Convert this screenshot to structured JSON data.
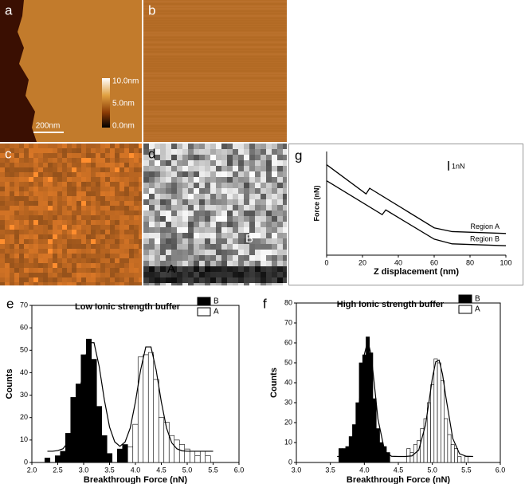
{
  "panel_labels": [
    "a",
    "b",
    "c",
    "d",
    "g",
    "e",
    "f"
  ],
  "image_a": {
    "colorbar_labels": [
      "10.0nm",
      "5.0nm",
      "0.0nm"
    ],
    "scale_bar": "200nm"
  },
  "image_d": {
    "region_labels": [
      "A",
      "B"
    ]
  },
  "chart_data": [
    {
      "type": "line",
      "xlabel": "Z displacement (nm)",
      "ylabel": "Force (nN)",
      "xlim": [
        0,
        100
      ],
      "xticks": [
        0,
        20,
        40,
        60,
        80,
        100
      ],
      "ylim": [
        0,
        11
      ],
      "scale_bar": {
        "value": 1,
        "label": "1nN"
      },
      "series": [
        {
          "name": "Region A",
          "color": "#000000",
          "x": [
            0,
            22,
            24,
            60,
            70,
            100
          ],
          "values": [
            9.6,
            6.5,
            7.1,
            2.9,
            2.5,
            2.3
          ]
        },
        {
          "name": "Region B",
          "color": "#000000",
          "x": [
            0,
            31,
            33,
            60,
            70,
            100
          ],
          "values": [
            7.9,
            4.3,
            4.8,
            1.7,
            1.2,
            1.0
          ]
        }
      ]
    },
    {
      "type": "bar",
      "title": "Low Ionic strength buffer",
      "xlabel": "Breakthrough Force (nN)",
      "ylabel": "Counts",
      "xlim": [
        2.0,
        6.0
      ],
      "xticks": [
        {
          "value": 2,
          "label": "2.0"
        },
        {
          "value": 2.5,
          "label": "2.5"
        },
        {
          "value": 3,
          "label": "3.0"
        },
        {
          "value": 3.5,
          "label": "3.5"
        },
        {
          "value": 4,
          "label": "4.0"
        },
        {
          "value": 4.5,
          "label": "4.5"
        },
        {
          "value": 5,
          "label": "5.0"
        },
        {
          "value": 5.5,
          "label": "5.5"
        },
        {
          "value": 6,
          "label": "6.0"
        }
      ],
      "ylim": [
        0,
        70
      ],
      "yticks": [
        0,
        10,
        20,
        30,
        40,
        50,
        60,
        70
      ],
      "legend": "upper right",
      "series": [
        {
          "name": "B",
          "color": "#000000",
          "x": [
            2.3,
            2.5,
            2.6,
            2.7,
            2.8,
            2.9,
            3.0,
            3.1,
            3.2,
            3.3,
            3.4,
            3.5,
            3.7,
            3.8
          ],
          "values": [
            2,
            3,
            5,
            13,
            29,
            35,
            48,
            55,
            46,
            25,
            12,
            4,
            6,
            8
          ]
        },
        {
          "name": "A",
          "color": "#ffffff",
          "x": [
            3.9,
            4.0,
            4.1,
            4.2,
            4.3,
            4.4,
            4.5,
            4.6,
            4.7,
            4.8,
            4.9,
            5.0,
            5.1,
            5.2,
            5.3,
            5.4
          ],
          "values": [
            7,
            17,
            47,
            48,
            49,
            37,
            20,
            18,
            12,
            10,
            8,
            6,
            5,
            3,
            5,
            3
          ]
        }
      ],
      "fit": {
        "color": "#000000",
        "x": [
          2.3,
          2.4,
          2.5,
          2.6,
          2.7,
          2.8,
          2.9,
          3.0,
          3.1,
          3.2,
          3.3,
          3.4,
          3.5,
          3.6,
          3.7,
          3.8,
          3.9,
          4.0,
          4.1,
          4.2,
          4.3,
          4.4,
          4.5,
          4.6,
          4.7,
          4.8,
          4.9,
          5.0,
          5.1,
          5.2,
          5.3,
          5.4,
          5.5
        ],
        "values": [
          5.0,
          5.0,
          5.3,
          6.1,
          9.0,
          15.8,
          27.9,
          42.8,
          53.4,
          53.4,
          42.8,
          27.9,
          15.8,
          9.2,
          7.2,
          9.1,
          15.4,
          27.0,
          41.2,
          51.5,
          51.5,
          41.2,
          27.0,
          15.4,
          8.8,
          6.1,
          5.2,
          5.0,
          5.0,
          5.0,
          5.0,
          5.0,
          5.0
        ]
      }
    },
    {
      "type": "bar",
      "title": "High Ionic strength buffer",
      "xlabel": "Breakthrough Force (nN)",
      "ylabel": "Counts",
      "xlim": [
        3.0,
        6.0
      ],
      "xticks": [
        {
          "value": 3,
          "label": "3.0"
        },
        {
          "value": 3.5,
          "label": "3.5"
        },
        {
          "value": 4,
          "label": "4.0"
        },
        {
          "value": 4.5,
          "label": "4.5"
        },
        {
          "value": 5,
          "label": "5.0"
        },
        {
          "value": 5.5,
          "label": "5.5"
        },
        {
          "value": 6,
          "label": "6.0"
        }
      ],
      "ylim": [
        0,
        80
      ],
      "yticks": [
        0,
        10,
        20,
        30,
        40,
        50,
        60,
        70,
        80
      ],
      "legend": "upper right",
      "series": [
        {
          "name": "B",
          "color": "#000000",
          "x": [
            3.65,
            3.7,
            3.75,
            3.8,
            3.85,
            3.9,
            3.95,
            4.0,
            4.05,
            4.1,
            4.15,
            4.2,
            4.25,
            4.3,
            4.35
          ],
          "values": [
            7,
            7,
            8,
            13,
            19,
            30,
            50,
            54,
            63,
            55,
            32,
            17,
            10,
            8,
            5
          ]
        },
        {
          "name": "A",
          "color": "#ffffff",
          "x": [
            4.65,
            4.7,
            4.75,
            4.8,
            4.85,
            4.9,
            4.95,
            5.0,
            5.05,
            5.1,
            5.15,
            5.2,
            5.25,
            5.3,
            5.35,
            5.4,
            5.5
          ],
          "values": [
            7,
            5,
            9,
            11,
            17,
            22,
            30,
            39,
            52,
            50,
            41,
            22,
            14,
            9,
            7,
            3,
            3
          ]
        }
      ],
      "fit": {
        "color": "#000000",
        "x": [
          3.6,
          3.7,
          3.8,
          3.9,
          3.95,
          4.0,
          4.05,
          4.1,
          4.15,
          4.2,
          4.3,
          4.4,
          4.5,
          4.6,
          4.7,
          4.8,
          4.9,
          4.95,
          5.0,
          5.05,
          5.1,
          5.15,
          5.2,
          5.3,
          5.4,
          5.5,
          5.6
        ],
        "values": [
          3.0,
          3.1,
          5.6,
          21.8,
          38.2,
          54.2,
          61.0,
          54.2,
          38.2,
          21.8,
          5.6,
          3.1,
          3.0,
          3.0,
          3.3,
          6.2,
          18.9,
          30.2,
          42.2,
          50.5,
          51.3,
          44.3,
          32.7,
          12.1,
          4.4,
          3.1,
          3.0
        ]
      }
    }
  ]
}
